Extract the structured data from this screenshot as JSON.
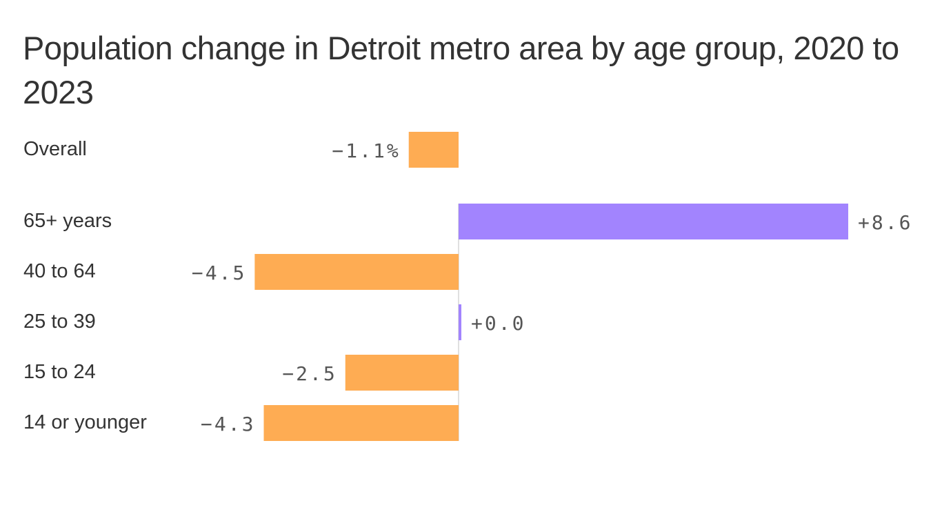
{
  "chart_data": {
    "type": "bar",
    "orientation": "horizontal",
    "title": "Population change in Detroit metro area by age group, 2020 to 2023",
    "categories": [
      "Overall",
      "65+ years",
      "40 to 64",
      "25 to 39",
      "15 to 24",
      "14 or younger"
    ],
    "values": [
      -1.1,
      8.6,
      -4.5,
      0.0,
      -2.5,
      -4.3
    ],
    "labels": [
      "−1.1%",
      "+8.6",
      "−4.5",
      "+0.0",
      "−2.5",
      "−4.3"
    ],
    "unit": "%",
    "xlim": [
      -4.6,
      8.7
    ],
    "grid": false,
    "legend": "none",
    "colors": {
      "positive": "#a284fe",
      "negative": "#feac53",
      "axis": "#e0e0e0"
    }
  }
}
